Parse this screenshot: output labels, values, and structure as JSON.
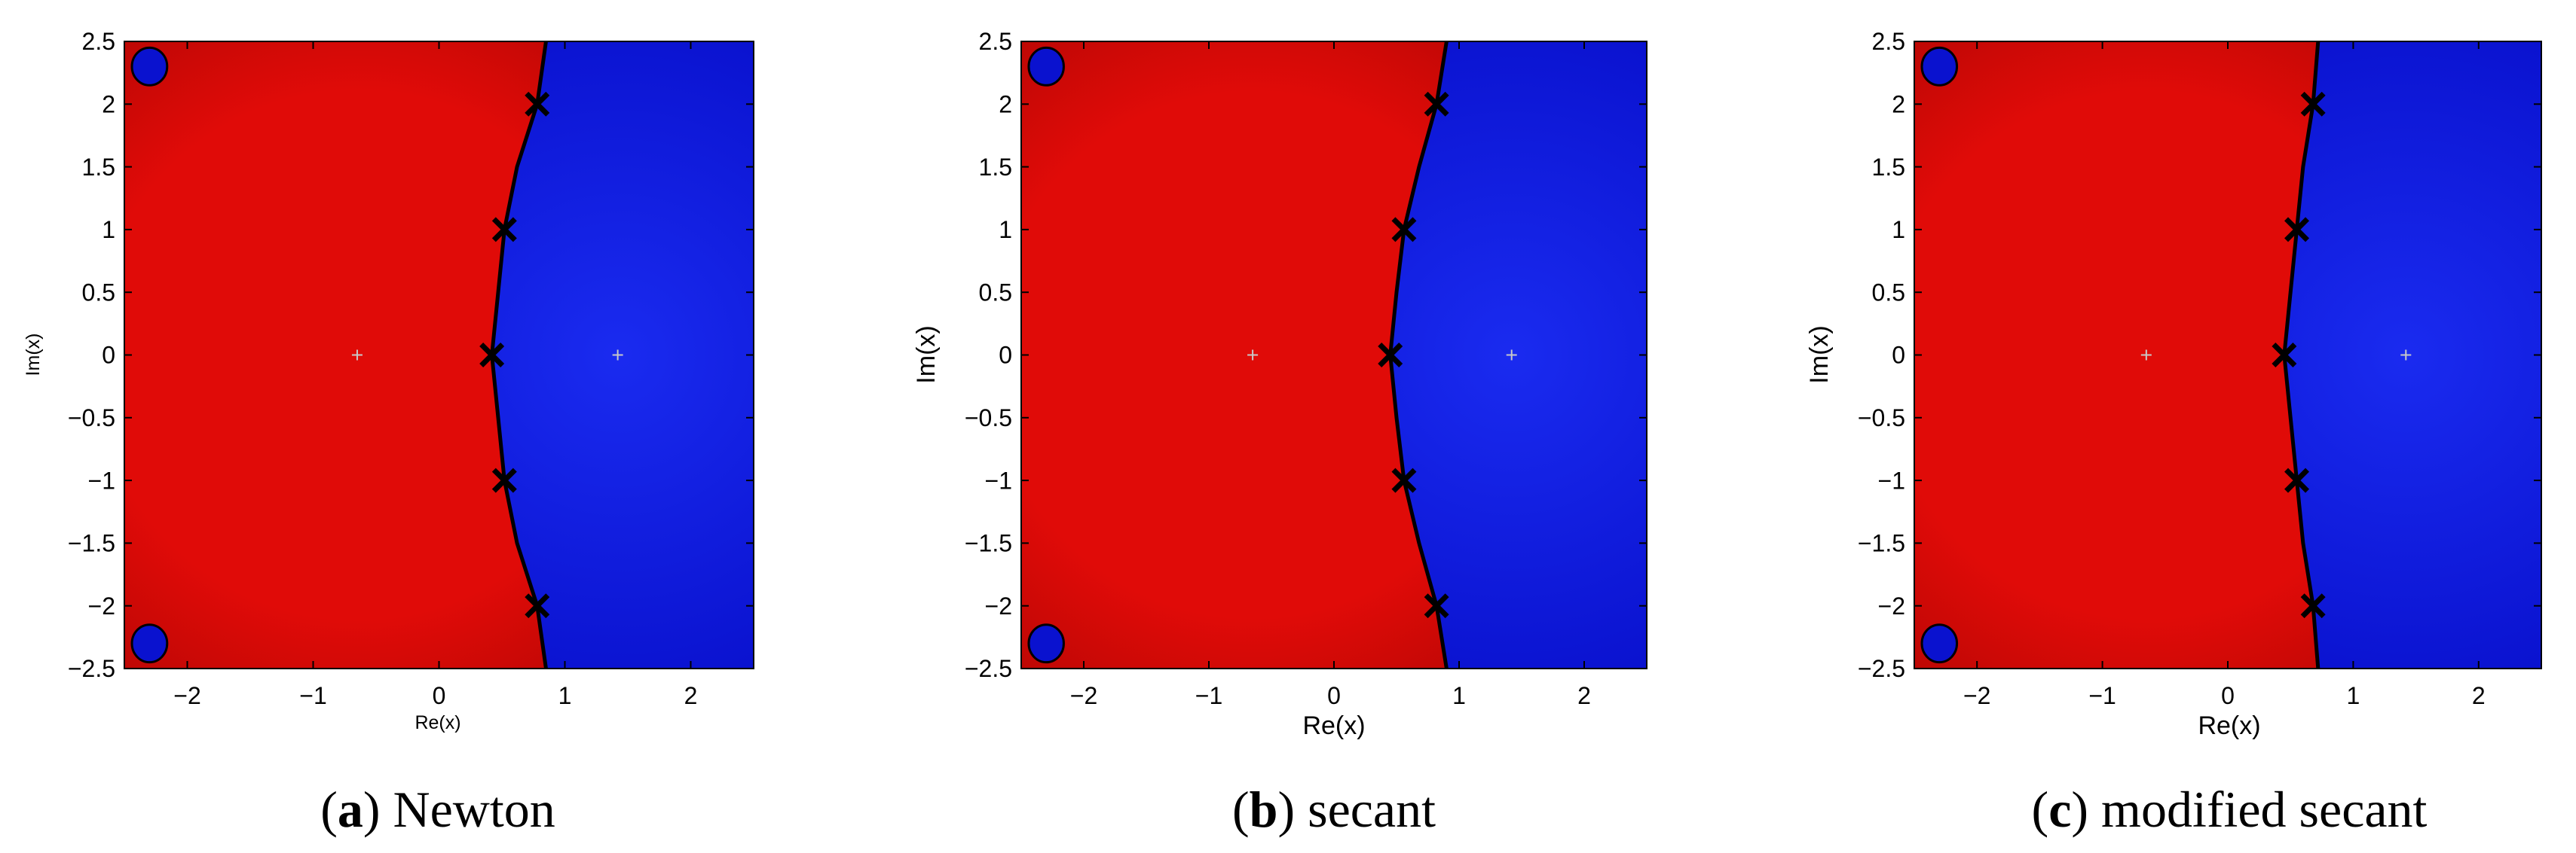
{
  "figure": {
    "panels": [
      {
        "letter": "a",
        "caption": "Newton"
      },
      {
        "letter": "b",
        "caption": "secant"
      },
      {
        "letter": "c",
        "caption": "modified secant"
      }
    ]
  },
  "colors": {
    "red_basin": "#e00b08",
    "red_basin_dark": "#b10603",
    "blue_basin": "#0a12cf",
    "blue_basin_light": "#1a2bf0",
    "boundary": "#000000",
    "root_marker": "#c8c8c8"
  },
  "chart_data": [
    {
      "type": "heatmap",
      "title": "",
      "xlabel": "Re(x)",
      "ylabel": "Im(x)",
      "xlim": [
        -2.5,
        2.5
      ],
      "ylim": [
        -2.5,
        2.5
      ],
      "xticks": [
        "−2",
        "−1",
        "0",
        "1",
        "2"
      ],
      "yticks": [
        "2.5",
        "2",
        "1.5",
        "1",
        "0.5",
        "0",
        "−0.5",
        "−1",
        "−1.5",
        "−2",
        "−2.5"
      ],
      "regions": [
        {
          "name": "basin-red",
          "color": "#e00b08"
        },
        {
          "name": "basin-blue",
          "color": "#0a12cf"
        }
      ],
      "roots": [
        [
          -0.65,
          0
        ],
        [
          1.42,
          0
        ]
      ],
      "boundary_x": [
        [
          -2.5,
          0.85
        ],
        [
          -2.0,
          0.78
        ],
        [
          -1.5,
          0.62
        ],
        [
          -1.0,
          0.52
        ],
        [
          -0.5,
          0.47
        ],
        [
          0,
          0.42
        ],
        [
          0.5,
          0.47
        ],
        [
          1.0,
          0.52
        ],
        [
          1.5,
          0.62
        ],
        [
          2.0,
          0.78
        ],
        [
          2.5,
          0.85
        ]
      ]
    },
    {
      "type": "heatmap",
      "title": "",
      "xlabel": "Re(x)",
      "ylabel": "Im(x)",
      "xlim": [
        -2.5,
        2.5
      ],
      "ylim": [
        -2.5,
        2.5
      ],
      "xticks": [
        "−2",
        "−1",
        "0",
        "1",
        "2"
      ],
      "yticks": [
        "2.5",
        "2",
        "1.5",
        "1",
        "0.5",
        "0",
        "−0.5",
        "−1",
        "−1.5",
        "−2",
        "−2.5"
      ],
      "regions": [
        {
          "name": "basin-red",
          "color": "#e00b08"
        },
        {
          "name": "basin-blue",
          "color": "#0a12cf"
        }
      ],
      "roots": [
        [
          -0.65,
          0
        ],
        [
          1.42,
          0
        ]
      ],
      "boundary_x": [
        [
          -2.5,
          0.9
        ],
        [
          -2.0,
          0.82
        ],
        [
          -1.5,
          0.68
        ],
        [
          -1.0,
          0.56
        ],
        [
          -0.5,
          0.5
        ],
        [
          0,
          0.45
        ],
        [
          0.5,
          0.5
        ],
        [
          1.0,
          0.56
        ],
        [
          1.5,
          0.68
        ],
        [
          2.0,
          0.82
        ],
        [
          2.5,
          0.9
        ]
      ]
    },
    {
      "type": "heatmap",
      "title": "",
      "xlabel": "Re(x)",
      "ylabel": "Im(x)",
      "xlim": [
        -2.5,
        2.5
      ],
      "ylim": [
        -2.5,
        2.5
      ],
      "xticks": [
        "−2",
        "−1",
        "0",
        "1",
        "2"
      ],
      "yticks": [
        "2.5",
        "2",
        "1.5",
        "1",
        "0.5",
        "0",
        "−0.5",
        "−1",
        "−1.5",
        "−2",
        "−2.5"
      ],
      "regions": [
        {
          "name": "basin-red",
          "color": "#e00b08"
        },
        {
          "name": "basin-blue",
          "color": "#0a12cf"
        }
      ],
      "roots": [
        [
          -0.65,
          0
        ],
        [
          1.42,
          0
        ]
      ],
      "boundary_x": [
        [
          -2.5,
          0.72
        ],
        [
          -2.0,
          0.68
        ],
        [
          -1.5,
          0.6
        ],
        [
          -1.0,
          0.55
        ],
        [
          -0.5,
          0.5
        ],
        [
          0,
          0.45
        ],
        [
          0.5,
          0.5
        ],
        [
          1.0,
          0.55
        ],
        [
          1.5,
          0.6
        ],
        [
          2.0,
          0.68
        ],
        [
          2.5,
          0.72
        ]
      ]
    }
  ]
}
